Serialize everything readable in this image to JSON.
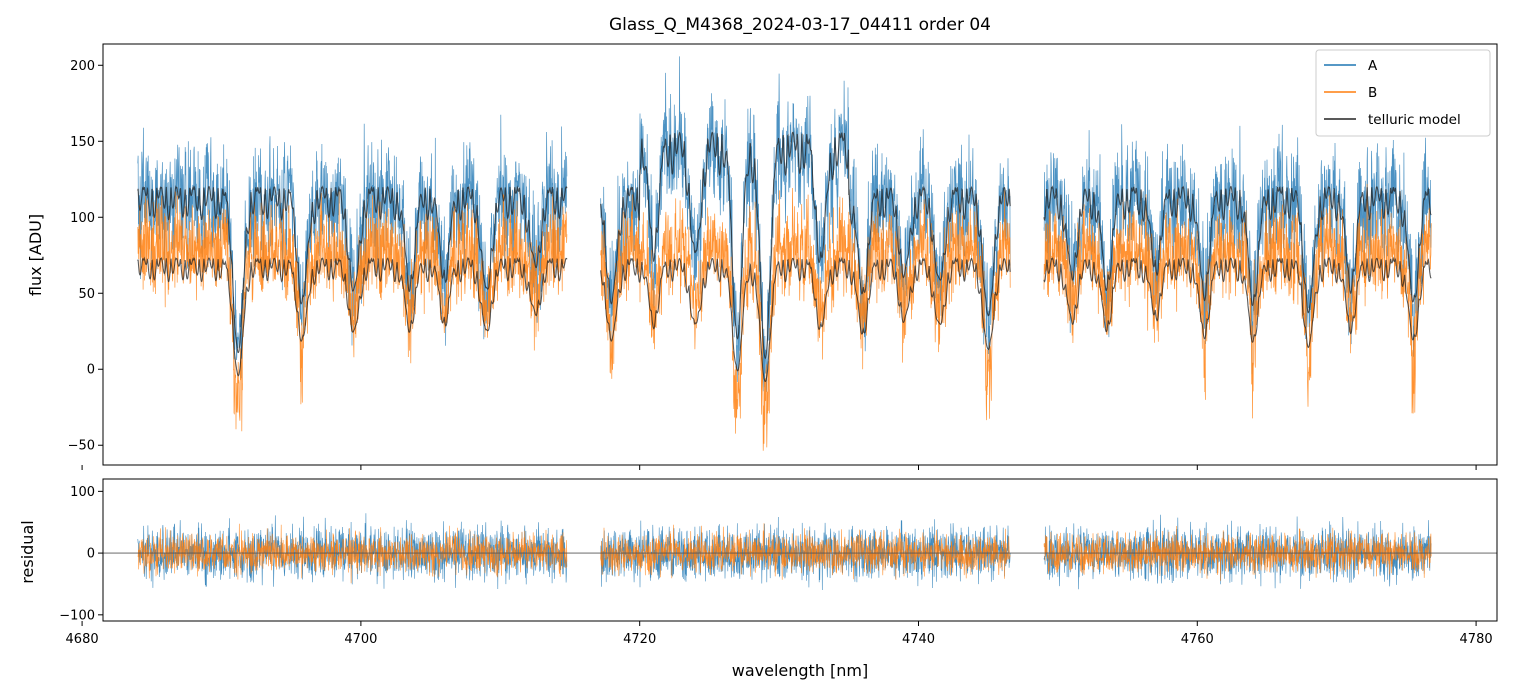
{
  "colors": {
    "A": "#1f77b4",
    "B": "#ff7f0e",
    "telluric": "#222222",
    "zero_line": "#555555"
  },
  "chart_data": [
    {
      "type": "line",
      "panel": "flux",
      "title": "Glass_Q_M4368_2024-03-17_04411  order 04",
      "xlabel": "",
      "ylabel": "flux [ADU]",
      "xlim": [
        4681.5,
        4781.5
      ],
      "ylim": [
        -63,
        214
      ],
      "yticks": [
        -50,
        0,
        50,
        100,
        150,
        200
      ],
      "ytick_labels": [
        "−50",
        "0",
        "50",
        "100",
        "150",
        "200"
      ],
      "xticks": [
        4680,
        4700,
        4720,
        4740,
        4760,
        4780
      ],
      "xtick_labels": [
        "",
        "",
        "",
        "",
        "",
        ""
      ],
      "segments": [
        [
          4684.0,
          4714.8
        ],
        [
          4717.2,
          4746.6
        ],
        [
          4749.0,
          4776.8
        ]
      ],
      "series": [
        {
          "name": "A",
          "color": "#1f77b4",
          "baseline": 120,
          "noise": 30
        },
        {
          "name": "B",
          "color": "#ff7f0e",
          "baseline": 85,
          "noise": 25
        },
        {
          "name": "telluric model",
          "color": "#222222",
          "style": "model"
        }
      ],
      "absorption_lines": [
        {
          "x": 4691.2,
          "depth": 0.9
        },
        {
          "x": 4695.8,
          "depth": 0.6
        },
        {
          "x": 4699.5,
          "depth": 0.55
        },
        {
          "x": 4703.5,
          "depth": 0.5
        },
        {
          "x": 4706.0,
          "depth": 0.45
        },
        {
          "x": 4709.0,
          "depth": 0.55
        },
        {
          "x": 4712.5,
          "depth": 0.4
        },
        {
          "x": 4718.0,
          "depth": 0.6
        },
        {
          "x": 4721.0,
          "depth": 0.45
        },
        {
          "x": 4724.0,
          "depth": 0.5
        },
        {
          "x": 4727.0,
          "depth": 0.85
        },
        {
          "x": 4729.0,
          "depth": 0.95
        },
        {
          "x": 4733.0,
          "depth": 0.5
        },
        {
          "x": 4736.0,
          "depth": 0.55
        },
        {
          "x": 4739.0,
          "depth": 0.45
        },
        {
          "x": 4741.5,
          "depth": 0.5
        },
        {
          "x": 4745.0,
          "depth": 0.7
        },
        {
          "x": 4751.0,
          "depth": 0.45
        },
        {
          "x": 4753.5,
          "depth": 0.5
        },
        {
          "x": 4757.0,
          "depth": 0.4
        },
        {
          "x": 4760.5,
          "depth": 0.55
        },
        {
          "x": 4764.0,
          "depth": 0.6
        },
        {
          "x": 4768.0,
          "depth": 0.65
        },
        {
          "x": 4771.0,
          "depth": 0.5
        },
        {
          "x": 4775.5,
          "depth": 0.6
        }
      ],
      "legend": {
        "location": "top-right",
        "entries": [
          "A",
          "B",
          "telluric model"
        ]
      }
    },
    {
      "type": "line",
      "panel": "residual",
      "xlabel": "wavelength [nm]",
      "ylabel": "residual",
      "xlim": [
        4681.5,
        4781.5
      ],
      "ylim": [
        -110,
        120
      ],
      "yticks": [
        -100,
        0,
        100
      ],
      "ytick_labels": [
        "−100",
        "0",
        "100"
      ],
      "xticks": [
        4680,
        4700,
        4720,
        4740,
        4760,
        4780
      ],
      "xtick_labels": [
        "4680",
        "4700",
        "4720",
        "4740",
        "4760",
        "4780"
      ],
      "zero_line": 0,
      "series": [
        {
          "name": "A",
          "color": "#1f77b4",
          "noise": 40
        },
        {
          "name": "B",
          "color": "#ff7f0e",
          "noise": 30
        }
      ]
    }
  ]
}
